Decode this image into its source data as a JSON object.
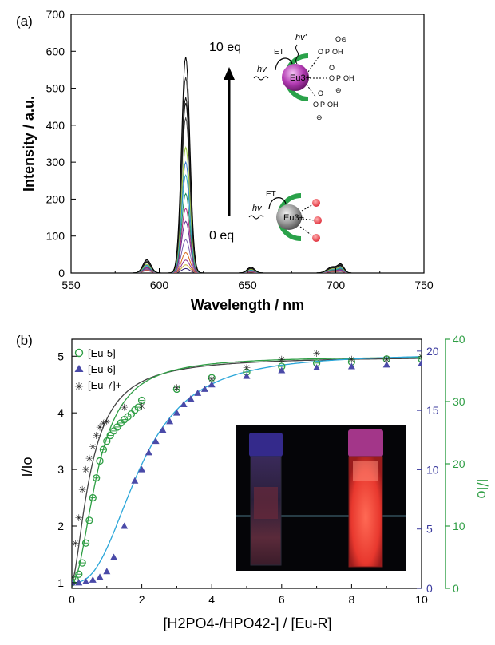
{
  "chart_data": [
    {
      "panel_label": "(a)",
      "type": "line",
      "xlabel": "Wavelength / nm",
      "ylabel": "Intensity / a.u.",
      "xlim": [
        550,
        750
      ],
      "ylim": [
        0,
        700
      ],
      "x_ticks": [
        "550",
        "600",
        "650",
        "700",
        "750"
      ],
      "y_ticks": [
        "0",
        "100",
        "200",
        "300",
        "400",
        "500",
        "600",
        "700"
      ],
      "annotations": {
        "top": "10 eq",
        "bottom": "0 eq"
      },
      "scheme_labels": {
        "et": "ET",
        "hv": "hv",
        "hv_prime": "hv'",
        "eu_ion": "Eu3+",
        "oh": "OH",
        "o_minus": "O⊖"
      },
      "peak_heights": [
        12,
        22,
        35,
        55,
        90,
        140,
        175,
        215,
        265,
        300,
        340,
        420,
        460,
        475,
        530,
        585
      ],
      "band_peaks_nm": [
        593,
        615,
        652,
        698,
        703
      ],
      "series_colors": [
        "#2b1a6e",
        "#c9b13a",
        "#8f2f8f",
        "#d96b1d",
        "#7b5fb0",
        "#6a2d91",
        "#b52a7e",
        "#1f8f5f",
        "#2aa6c9",
        "#3b7fd1",
        "#9ccc3c",
        "#444444",
        "#222222",
        "#111111",
        "#333333",
        "#000000"
      ],
      "grid": false
    },
    {
      "panel_label": "(b)",
      "type": "scatter",
      "xlabel": "[H2PO4-/HPO42-] / [Eu-R]",
      "ylabel_left": "I/Io",
      "ylabel_right": "I/Io",
      "xlim": [
        0,
        10
      ],
      "ylim_left": [
        0.9,
        5.3
      ],
      "ylim_right_blue": [
        0,
        21
      ],
      "ylim_right_green": [
        0,
        40
      ],
      "x_ticks": [
        "0",
        "2",
        "4",
        "6",
        "8",
        "10"
      ],
      "y_ticks_left": [
        "1",
        "2",
        "3",
        "4",
        "5"
      ],
      "y_ticks_right_blue": [
        "0",
        "5",
        "10",
        "15",
        "20"
      ],
      "y_ticks_right_green": [
        "0",
        "10",
        "20",
        "30",
        "40"
      ],
      "legend": [
        "[Eu-5]",
        "[Eu-6]",
        "[Eu-7]+"
      ],
      "legend_position": "top-left",
      "series": [
        {
          "name": "[Eu-5]",
          "marker": "circle-open",
          "color": "#2e9e44",
          "x": [
            0,
            0.1,
            0.2,
            0.3,
            0.4,
            0.5,
            0.6,
            0.7,
            0.8,
            0.9,
            1.0,
            1.1,
            1.2,
            1.3,
            1.4,
            1.5,
            1.6,
            1.7,
            1.8,
            1.9,
            2.0,
            3.0,
            4.0,
            5.0,
            6.0,
            7.0,
            8.0,
            9.0,
            10.0
          ],
          "y": [
            1.0,
            1.05,
            1.15,
            1.35,
            1.7,
            2.1,
            2.5,
            2.85,
            3.15,
            3.35,
            3.5,
            3.6,
            3.68,
            3.75,
            3.82,
            3.88,
            3.93,
            3.98,
            4.05,
            4.1,
            4.22,
            4.42,
            4.62,
            4.72,
            4.82,
            4.88,
            4.9,
            4.95,
            4.95
          ]
        },
        {
          "name": "[Eu-6]",
          "marker": "triangle-filled",
          "color": "#4a4aa8",
          "x": [
            0,
            0.2,
            0.4,
            0.6,
            0.8,
            1.0,
            1.2,
            1.5,
            1.8,
            2.0,
            2.2,
            2.4,
            2.6,
            2.8,
            3.0,
            3.2,
            3.4,
            3.6,
            3.8,
            4.0,
            5.0,
            6.0,
            7.0,
            8.0,
            9.0,
            10.0
          ],
          "y": [
            1.0,
            1.0,
            1.02,
            1.05,
            1.1,
            1.2,
            1.45,
            2.0,
            2.8,
            3.0,
            3.3,
            3.5,
            3.7,
            3.85,
            4.0,
            4.15,
            4.25,
            4.35,
            4.42,
            4.5,
            4.65,
            4.75,
            4.8,
            4.82,
            4.85,
            4.88
          ]
        },
        {
          "name": "[Eu-7]+",
          "marker": "asterisk",
          "color": "#222222",
          "x": [
            0,
            0.1,
            0.2,
            0.3,
            0.4,
            0.5,
            0.6,
            0.7,
            0.8,
            0.9,
            1.0,
            1.5,
            2.0,
            3.0,
            4.0,
            5.0,
            6.0,
            7.0,
            8.0,
            9.0,
            10.0
          ],
          "y": [
            1.1,
            1.7,
            2.15,
            2.65,
            3.0,
            3.2,
            3.4,
            3.6,
            3.75,
            3.82,
            3.85,
            4.1,
            4.12,
            4.45,
            4.6,
            4.8,
            4.95,
            5.05,
            4.95,
            4.95,
            5.0
          ]
        }
      ],
      "axis_colors": {
        "left": "#000000",
        "right_blue": "#3b3b9e",
        "right_green": "#2e9e44"
      },
      "fit_colors": {
        "[Eu-5]": "#2e9e44",
        "[Eu-6]": "#2aa6d9",
        "[Eu-7]+": "#444444"
      },
      "grid": false
    }
  ]
}
